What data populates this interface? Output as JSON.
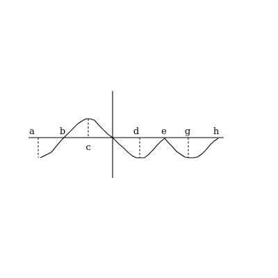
{
  "figure": {
    "point_labels": {
      "a": "a",
      "b": "b",
      "c": "c",
      "d": "d",
      "e": "e",
      "g": "g",
      "h": "h"
    }
  }
}
